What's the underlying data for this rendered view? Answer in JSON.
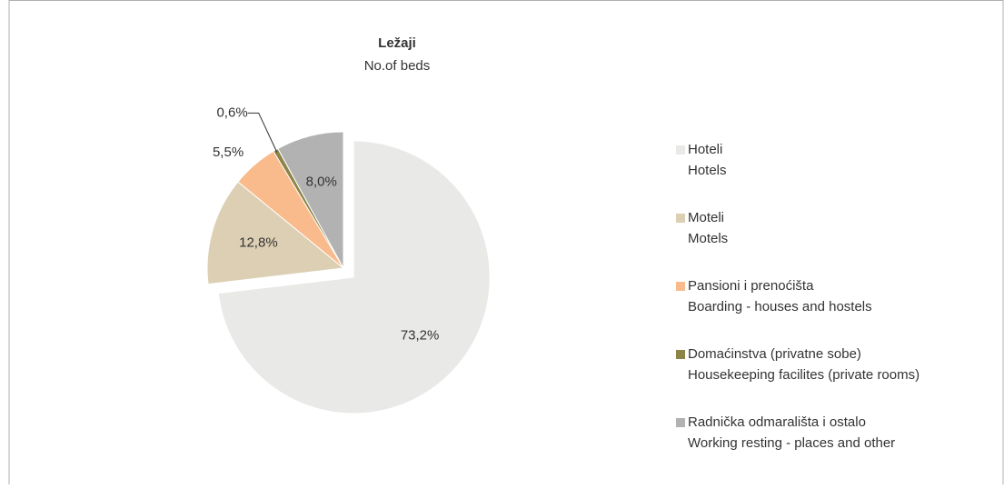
{
  "chart_data": {
    "type": "pie",
    "title": "Ležaji",
    "subtitle": "No.of beds",
    "categories": [
      [
        "Hoteli",
        "Hotels"
      ],
      [
        "Moteli",
        "Motels"
      ],
      [
        "Pansioni  i  prenoćišta",
        "Boarding - houses and hostels"
      ],
      [
        "Domaćinstva (privatne sobe)",
        "Housekeeping facilites (private rooms)"
      ],
      [
        "Radnička odmarališta i ostalo",
        "Working resting - places and other"
      ]
    ],
    "values": [
      73.2,
      12.8,
      5.5,
      0.6,
      8.0
    ],
    "value_labels": [
      "73,2%",
      "12,8%",
      "5,5%",
      "0,6%",
      "8,0%"
    ],
    "colors": [
      "#e9e9e7",
      "#dccfb4",
      "#f9bb8b",
      "#8d8447",
      "#b2b2b2"
    ],
    "legend": "right"
  }
}
